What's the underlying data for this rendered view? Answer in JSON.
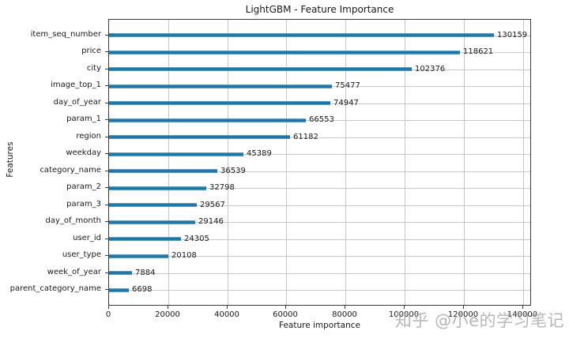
{
  "watermark": "知乎 @小e的学习笔记",
  "chart_data": {
    "type": "bar",
    "orientation": "horizontal",
    "title": "LightGBM - Feature Importance",
    "xlabel": "Feature importance",
    "ylabel": "Features",
    "categories": [
      "item_seq_number",
      "price",
      "city",
      "image_top_1",
      "day_of_year",
      "param_1",
      "region",
      "weekday",
      "category_name",
      "param_2",
      "param_3",
      "day_of_month",
      "user_id",
      "user_type",
      "week_of_year",
      "parent_category_name"
    ],
    "values": [
      130159,
      118621,
      102376,
      75477,
      74947,
      66553,
      61182,
      45389,
      36539,
      32798,
      29567,
      29146,
      24305,
      20108,
      7884,
      6698
    ],
    "x_ticks": [
      0,
      20000,
      40000,
      60000,
      80000,
      100000,
      120000,
      140000
    ],
    "xlim": [
      0,
      143000
    ],
    "grid": true,
    "legend": "none",
    "bar_color": "#1f77b4",
    "grid_color": "#c6c6c6"
  }
}
